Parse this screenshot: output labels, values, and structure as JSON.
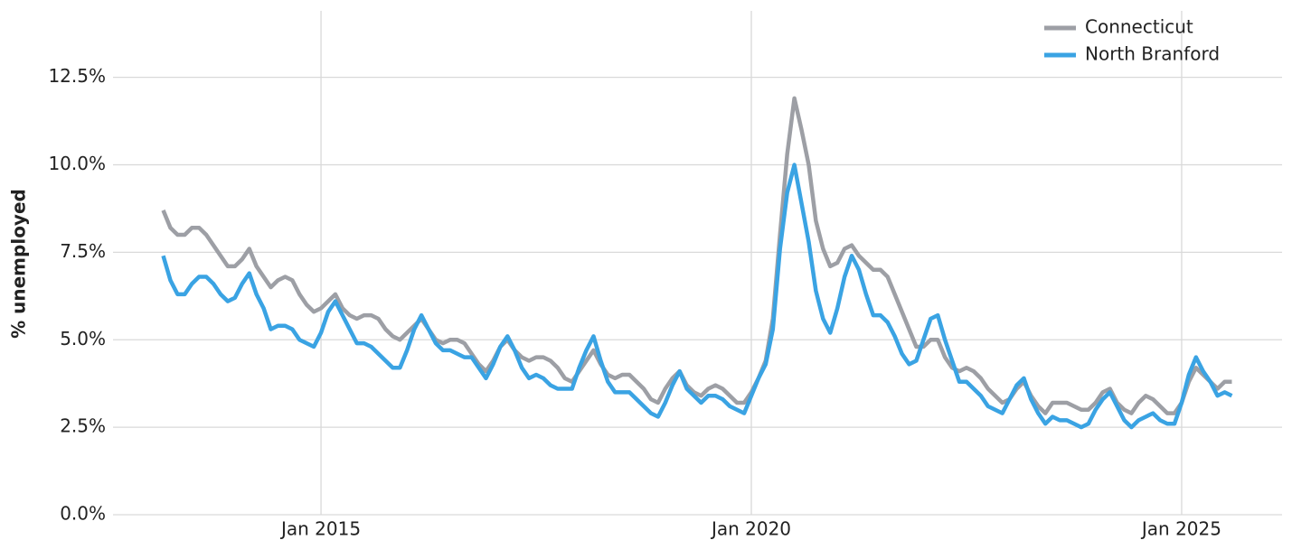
{
  "chart_data": {
    "type": "line",
    "y_label": "% unemployed",
    "legend": "top-right",
    "grid": true,
    "x": [
      "2013-03",
      "2013-04",
      "2013-05",
      "2013-06",
      "2013-07",
      "2013-08",
      "2013-09",
      "2013-10",
      "2013-11",
      "2013-12",
      "2014-01",
      "2014-02",
      "2014-03",
      "2014-04",
      "2014-05",
      "2014-06",
      "2014-07",
      "2014-08",
      "2014-09",
      "2014-10",
      "2014-11",
      "2014-12",
      "2015-01",
      "2015-02",
      "2015-03",
      "2015-04",
      "2015-05",
      "2015-06",
      "2015-07",
      "2015-08",
      "2015-09",
      "2015-10",
      "2015-11",
      "2015-12",
      "2016-01",
      "2016-02",
      "2016-03",
      "2016-04",
      "2016-05",
      "2016-06",
      "2016-07",
      "2016-08",
      "2016-09",
      "2016-10",
      "2016-11",
      "2016-12",
      "2017-01",
      "2017-02",
      "2017-03",
      "2017-04",
      "2017-05",
      "2017-06",
      "2017-07",
      "2017-08",
      "2017-09",
      "2017-10",
      "2017-11",
      "2017-12",
      "2018-01",
      "2018-02",
      "2018-03",
      "2018-04",
      "2018-05",
      "2018-06",
      "2018-07",
      "2018-08",
      "2018-09",
      "2018-10",
      "2018-11",
      "2018-12",
      "2019-01",
      "2019-02",
      "2019-03",
      "2019-04",
      "2019-05",
      "2019-06",
      "2019-07",
      "2019-08",
      "2019-09",
      "2019-10",
      "2019-11",
      "2019-12",
      "2020-01",
      "2020-02",
      "2020-03",
      "2020-04",
      "2020-05",
      "2020-06",
      "2020-07",
      "2020-08",
      "2020-09",
      "2020-10",
      "2020-11",
      "2020-12",
      "2021-01",
      "2021-02",
      "2021-03",
      "2021-04",
      "2021-05",
      "2021-06",
      "2021-07",
      "2021-08",
      "2021-09",
      "2021-10",
      "2021-11",
      "2021-12",
      "2022-01",
      "2022-02",
      "2022-03",
      "2022-04",
      "2022-05",
      "2022-06",
      "2022-07",
      "2022-08",
      "2022-09",
      "2022-10",
      "2022-11",
      "2022-12",
      "2023-01",
      "2023-02",
      "2023-03",
      "2023-04",
      "2023-05",
      "2023-06",
      "2023-07",
      "2023-08",
      "2023-09",
      "2023-10",
      "2023-11",
      "2023-12",
      "2024-01",
      "2024-02",
      "2024-03",
      "2024-04",
      "2024-05",
      "2024-06",
      "2024-07",
      "2024-08",
      "2024-09",
      "2024-10",
      "2024-11",
      "2024-12",
      "2025-01",
      "2025-02",
      "2025-03",
      "2025-04",
      "2025-05",
      "2025-06",
      "2025-07",
      "2025-08"
    ],
    "series": [
      {
        "name": "Connecticut",
        "color": "#9d9fa5",
        "values": [
          8.7,
          8.2,
          8.0,
          8.0,
          8.2,
          8.2,
          8.0,
          7.7,
          7.4,
          7.1,
          7.1,
          7.3,
          7.6,
          7.1,
          6.8,
          6.5,
          6.7,
          6.8,
          6.7,
          6.3,
          6.0,
          5.8,
          5.9,
          6.1,
          6.3,
          5.9,
          5.7,
          5.6,
          5.7,
          5.7,
          5.6,
          5.3,
          5.1,
          5.0,
          5.2,
          5.4,
          5.6,
          5.3,
          5.0,
          4.9,
          5.0,
          5.0,
          4.9,
          4.6,
          4.3,
          4.1,
          4.4,
          4.8,
          5.0,
          4.7,
          4.5,
          4.4,
          4.5,
          4.5,
          4.4,
          4.2,
          3.9,
          3.8,
          4.1,
          4.4,
          4.7,
          4.3,
          4.0,
          3.9,
          4.0,
          4.0,
          3.8,
          3.6,
          3.3,
          3.2,
          3.6,
          3.9,
          4.1,
          3.7,
          3.5,
          3.4,
          3.6,
          3.7,
          3.6,
          3.4,
          3.2,
          3.2,
          3.5,
          3.9,
          4.4,
          5.6,
          8.0,
          10.3,
          11.9,
          11.0,
          10.0,
          8.4,
          7.6,
          7.1,
          7.2,
          7.6,
          7.7,
          7.4,
          7.2,
          7.0,
          7.0,
          6.8,
          6.3,
          5.8,
          5.3,
          4.8,
          4.8,
          5.0,
          5.0,
          4.5,
          4.2,
          4.1,
          4.2,
          4.1,
          3.9,
          3.6,
          3.4,
          3.2,
          3.3,
          3.6,
          3.8,
          3.4,
          3.1,
          2.9,
          3.2,
          3.2,
          3.2,
          3.1,
          3.0,
          3.0,
          3.2,
          3.5,
          3.6,
          3.2,
          3.0,
          2.9,
          3.2,
          3.4,
          3.3,
          3.1,
          2.9,
          2.9,
          3.2,
          3.8,
          4.2,
          4.0,
          3.8,
          3.6,
          3.8,
          3.8
        ]
      },
      {
        "name": "North Branford",
        "color": "#3aa3e3",
        "values": [
          7.4,
          6.7,
          6.3,
          6.3,
          6.6,
          6.8,
          6.8,
          6.6,
          6.3,
          6.1,
          6.2,
          6.6,
          6.9,
          6.3,
          5.9,
          5.3,
          5.4,
          5.4,
          5.3,
          5.0,
          4.9,
          4.8,
          5.2,
          5.8,
          6.1,
          5.7,
          5.3,
          4.9,
          4.9,
          4.8,
          4.6,
          4.4,
          4.2,
          4.2,
          4.7,
          5.3,
          5.7,
          5.3,
          4.9,
          4.7,
          4.7,
          4.6,
          4.5,
          4.5,
          4.2,
          3.9,
          4.3,
          4.8,
          5.1,
          4.7,
          4.2,
          3.9,
          4.0,
          3.9,
          3.7,
          3.6,
          3.6,
          3.6,
          4.2,
          4.7,
          5.1,
          4.4,
          3.8,
          3.5,
          3.5,
          3.5,
          3.3,
          3.1,
          2.9,
          2.8,
          3.2,
          3.7,
          4.1,
          3.6,
          3.4,
          3.2,
          3.4,
          3.4,
          3.3,
          3.1,
          3.0,
          2.9,
          3.4,
          3.9,
          4.3,
          5.3,
          7.6,
          9.2,
          10.0,
          8.9,
          7.8,
          6.4,
          5.6,
          5.2,
          5.9,
          6.8,
          7.4,
          7.0,
          6.3,
          5.7,
          5.7,
          5.5,
          5.1,
          4.6,
          4.3,
          4.4,
          5.0,
          5.6,
          5.7,
          5.0,
          4.4,
          3.8,
          3.8,
          3.6,
          3.4,
          3.1,
          3.0,
          2.9,
          3.3,
          3.7,
          3.9,
          3.3,
          2.9,
          2.6,
          2.8,
          2.7,
          2.7,
          2.6,
          2.5,
          2.6,
          3.0,
          3.3,
          3.5,
          3.1,
          2.7,
          2.5,
          2.7,
          2.8,
          2.9,
          2.7,
          2.6,
          2.6,
          3.2,
          4.0,
          4.5,
          4.1,
          3.8,
          3.4,
          3.5,
          3.4
        ]
      }
    ],
    "xlim": [
      "2012-08",
      "2026-03"
    ],
    "xticks": [
      {
        "value": "2015-01",
        "label": "Jan 2015"
      },
      {
        "value": "2020-01",
        "label": "Jan 2020"
      },
      {
        "value": "2025-01",
        "label": "Jan 2025"
      }
    ],
    "ylim": [
      0,
      14.4
    ],
    "yticks": [
      {
        "value": 0,
        "label": "0.0%"
      },
      {
        "value": 2.5,
        "label": "2.5%"
      },
      {
        "value": 5,
        "label": "5.0%"
      },
      {
        "value": 7.5,
        "label": "7.5%"
      },
      {
        "value": 10,
        "label": "10.0%"
      },
      {
        "value": 12.5,
        "label": "12.5%"
      }
    ]
  }
}
